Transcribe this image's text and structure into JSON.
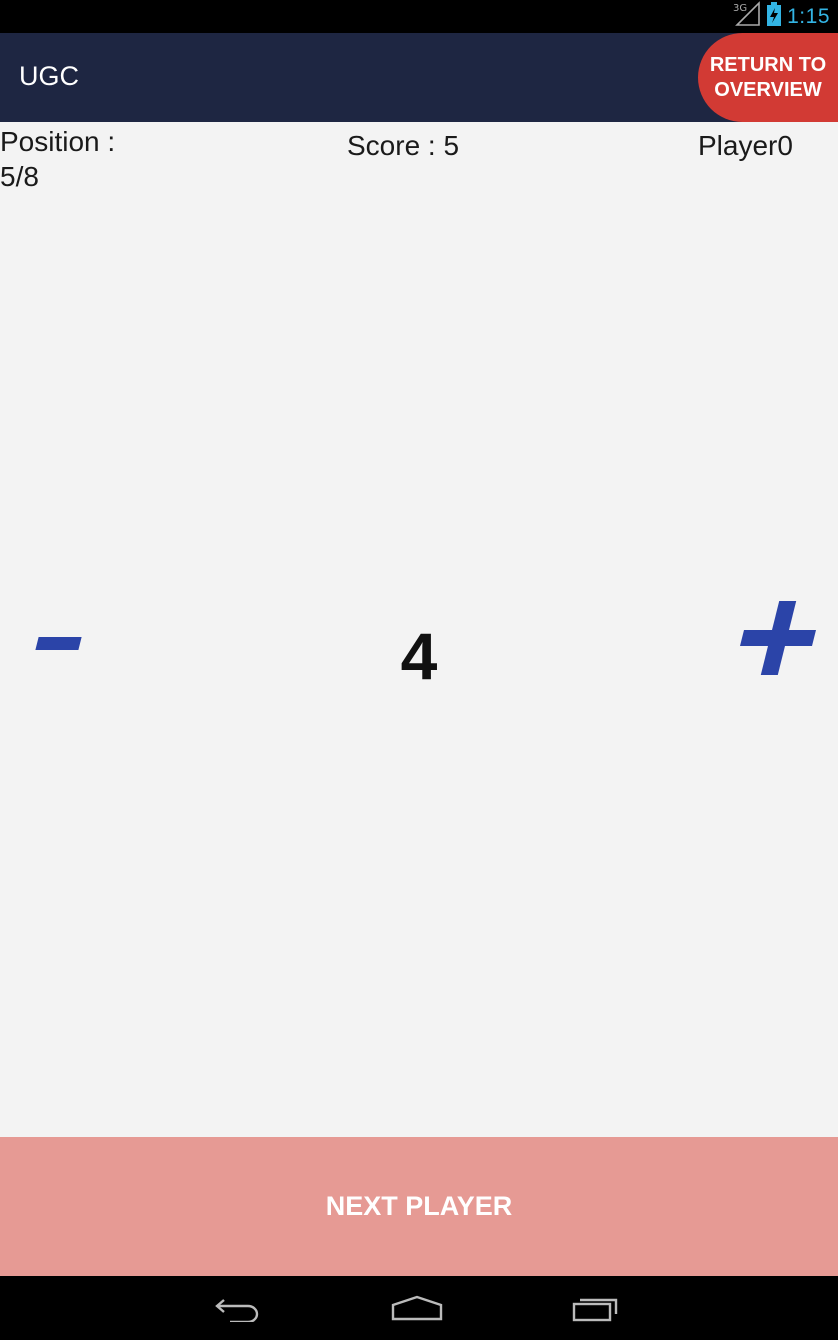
{
  "status_bar": {
    "network": "3G",
    "time": "1:15",
    "icons": [
      "signal-icon",
      "battery-icon"
    ]
  },
  "app_bar": {
    "title": "UGC",
    "return_button": {
      "line1": "RETURN TO",
      "line2": "OVERVIEW"
    }
  },
  "info": {
    "position_label": "Position :",
    "position_value": "5/8",
    "score_label": "Score : 5",
    "player_name": "Player0"
  },
  "counter": {
    "value": "4",
    "decrement_icon": "minus-icon",
    "increment_icon": "plus-icon"
  },
  "next_button_label": "NEXT PLAYER",
  "nav_bar": {
    "icons": [
      "back-icon",
      "home-icon",
      "recents-icon"
    ]
  },
  "colors": {
    "app_bar": "#1e2642",
    "return_button": "#d23a34",
    "accent_blue": "#2b44a8",
    "next_button": "#e69a94",
    "status_time": "#33b5e5",
    "background": "#f3f3f3"
  }
}
